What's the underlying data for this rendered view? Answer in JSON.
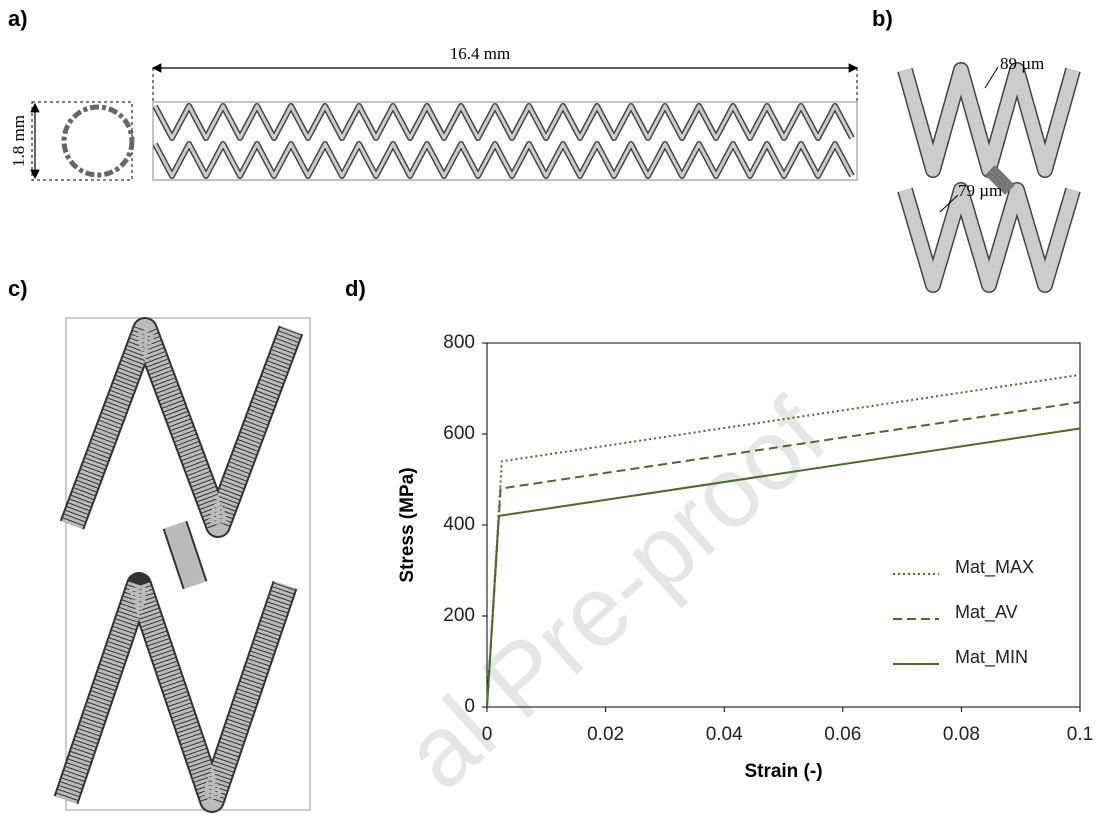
{
  "panels": [
    "a)",
    "b)",
    "c)",
    "d)"
  ],
  "annotations": {
    "length": "16.4 mm",
    "diameter": "1.8 mm",
    "strut_width_1": "89 µm",
    "strut_width_2": "79 µm"
  },
  "watermark": "al Pre-proof",
  "chart_data": {
    "type": "line",
    "xlabel": "Strain (-)",
    "ylabel": "Stress (MPa)",
    "xlim": [
      0,
      0.1
    ],
    "xticks": [
      0,
      0.02,
      0.04,
      0.06,
      0.08,
      0.1
    ],
    "ylim": [
      0,
      800
    ],
    "yticks": [
      0,
      200,
      400,
      600,
      800
    ],
    "legend": "lower right",
    "grid": false,
    "series": [
      {
        "name": "Mat_MAX",
        "color": "#4a6b2a",
        "dash": "dotted",
        "x": [
          0,
          0.0025,
          0.1
        ],
        "values": [
          0,
          540,
          730
        ]
      },
      {
        "name": "Mat_AV",
        "color": "#4a6b2a",
        "dash": "dashed",
        "x": [
          0,
          0.0023,
          0.1
        ],
        "values": [
          0,
          480,
          670
        ]
      },
      {
        "name": "Mat_MIN",
        "color": "#4a6b2a",
        "dash": "solid",
        "x": [
          0,
          0.002,
          0.1
        ],
        "values": [
          0,
          420,
          612
        ]
      }
    ]
  }
}
